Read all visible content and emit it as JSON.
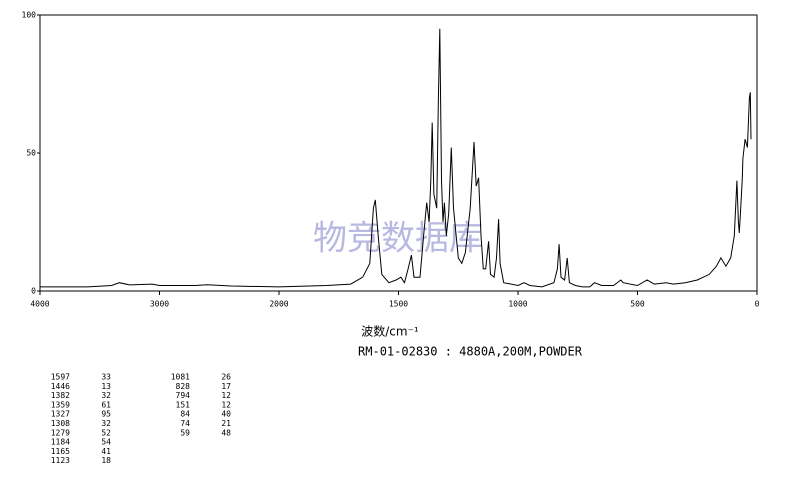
{
  "chart_data": {
    "type": "line",
    "x_label": "波数/cm⁻¹",
    "subtitle": "RM-01-02830 : 4880A,200M,POWDER",
    "watermark": "物竞数据库",
    "color": "#000000",
    "xlim": [
      4000,
      0
    ],
    "xticks": [
      4000,
      3000,
      2000,
      1500,
      1000,
      500,
      0
    ],
    "ylim": [
      0,
      100
    ],
    "yticks": [
      0,
      50,
      100
    ],
    "x": [
      4000,
      3600,
      3400,
      3336,
      3250,
      3060,
      3000,
      2700,
      2600,
      2400,
      2000,
      1800,
      1700,
      1650,
      1620,
      1605,
      1597,
      1585,
      1570,
      1540,
      1510,
      1490,
      1475,
      1460,
      1446,
      1435,
      1410,
      1395,
      1382,
      1372,
      1365,
      1359,
      1352,
      1340,
      1333,
      1327,
      1320,
      1314,
      1308,
      1300,
      1290,
      1279,
      1270,
      1250,
      1235,
      1220,
      1200,
      1190,
      1184,
      1175,
      1165,
      1155,
      1145,
      1135,
      1123,
      1115,
      1100,
      1090,
      1081,
      1075,
      1060,
      1000,
      975,
      950,
      900,
      850,
      835,
      828,
      820,
      805,
      794,
      785,
      760,
      730,
      700,
      680,
      650,
      600,
      570,
      560,
      500,
      460,
      430,
      380,
      350,
      300,
      250,
      200,
      170,
      151,
      130,
      110,
      95,
      84,
      78,
      74,
      68,
      62,
      59,
      50,
      40,
      32,
      28,
      25
    ],
    "values": [
      1.5,
      1.5,
      2,
      3,
      2.2,
      2.5,
      2,
      2,
      2.3,
      1.8,
      1.5,
      2,
      2.5,
      5,
      10,
      30,
      33,
      20,
      6,
      3,
      4,
      5,
      3,
      8,
      13,
      5,
      5,
      20,
      32,
      25,
      40,
      61,
      35,
      30,
      70,
      95,
      40,
      25,
      32,
      20,
      28,
      52,
      30,
      12,
      10,
      14,
      30,
      45,
      54,
      38,
      41,
      20,
      8,
      8,
      18,
      6,
      5,
      12,
      26,
      10,
      3,
      2,
      3,
      2,
      1.5,
      3,
      8,
      17,
      5,
      4,
      12,
      3,
      2,
      1.5,
      1.5,
      3,
      2,
      2,
      4,
      3,
      2,
      4,
      2.5,
      3,
      2.5,
      3,
      4,
      6,
      9,
      12,
      9,
      12,
      20,
      40,
      25,
      21,
      30,
      40,
      48,
      55,
      52,
      70,
      72,
      55
    ],
    "peak_table": [
      [
        1597,
        33
      ],
      [
        1446,
        13
      ],
      [
        1382,
        32
      ],
      [
        1359,
        61
      ],
      [
        1327,
        95
      ],
      [
        1308,
        32
      ],
      [
        1279,
        52
      ],
      [
        1184,
        54
      ],
      [
        1165,
        41
      ],
      [
        1123,
        18
      ],
      [
        1081,
        26
      ],
      [
        828,
        17
      ],
      [
        794,
        12
      ],
      [
        151,
        12
      ],
      [
        84,
        40
      ],
      [
        74,
        21
      ],
      [
        59,
        48
      ]
    ]
  }
}
